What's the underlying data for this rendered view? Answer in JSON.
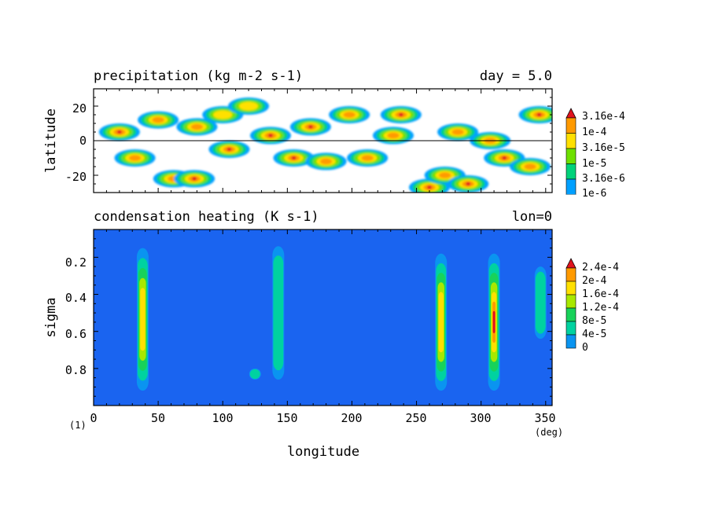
{
  "chart_data": [
    {
      "type": "heatmap",
      "title": "precipitation (kg m-2 s-1)",
      "title_right": "day = 5.0",
      "xlabel": "",
      "ylabel": "latitude",
      "xlim": [
        0,
        355
      ],
      "ylim": [
        -30,
        30
      ],
      "yticks": [
        "20",
        "0",
        "-20"
      ],
      "colorbar": {
        "labels": [
          "3.16e-4",
          "1e-4",
          "3.16e-5",
          "1e-5",
          "3.16e-6",
          "1e-6"
        ],
        "colors": [
          "#ff9a00",
          "#ffe000",
          "#6ee000",
          "#00d27a",
          "#00a0ff",
          "#ffffff"
        ],
        "peak_color": "#e0141e"
      },
      "features": [
        {
          "lon": 20,
          "lat": 5,
          "level": 4
        },
        {
          "lon": 32,
          "lat": -10,
          "level": 3
        },
        {
          "lon": 50,
          "lat": 12,
          "level": 3
        },
        {
          "lon": 62,
          "lat": -22,
          "level": 3
        },
        {
          "lon": 78,
          "lat": -22,
          "level": 4
        },
        {
          "lon": 80,
          "lat": 8,
          "level": 3
        },
        {
          "lon": 100,
          "lat": 15,
          "level": 2
        },
        {
          "lon": 105,
          "lat": -5,
          "level": 4
        },
        {
          "lon": 120,
          "lat": 20,
          "level": 2
        },
        {
          "lon": 137,
          "lat": 3,
          "level": 4
        },
        {
          "lon": 155,
          "lat": -10,
          "level": 4
        },
        {
          "lon": 168,
          "lat": 8,
          "level": 4
        },
        {
          "lon": 180,
          "lat": -12,
          "level": 3
        },
        {
          "lon": 198,
          "lat": 15,
          "level": 3
        },
        {
          "lon": 212,
          "lat": -10,
          "level": 3
        },
        {
          "lon": 232,
          "lat": 3,
          "level": 3
        },
        {
          "lon": 238,
          "lat": 15,
          "level": 4
        },
        {
          "lon": 260,
          "lat": -27,
          "level": 4
        },
        {
          "lon": 272,
          "lat": -20,
          "level": 3
        },
        {
          "lon": 282,
          "lat": 5,
          "level": 3
        },
        {
          "lon": 290,
          "lat": -25,
          "level": 4
        },
        {
          "lon": 307,
          "lat": 0,
          "level": 3
        },
        {
          "lon": 318,
          "lat": -10,
          "level": 4
        },
        {
          "lon": 338,
          "lat": -15,
          "level": 3
        },
        {
          "lon": 345,
          "lat": 15,
          "level": 4
        }
      ]
    },
    {
      "type": "heatmap",
      "title": "condensation heating (K s-1)",
      "title_right": "lon=0",
      "xlabel": "longitude",
      "ylabel": "sigma",
      "xlim": [
        0,
        355
      ],
      "ylim": [
        1.0,
        0.05
      ],
      "xticks": [
        "0",
        "50",
        "100",
        "150",
        "200",
        "250",
        "300",
        "350"
      ],
      "yticks": [
        "0.2",
        "0.4",
        "0.6",
        "0.8"
      ],
      "x_unit": "(deg)",
      "figure_label": "(1)",
      "colorbar": {
        "labels": [
          "2.4e-4",
          "2e-4",
          "1.6e-4",
          "1.2e-4",
          "8e-5",
          "4e-5",
          "0"
        ],
        "colors": [
          "#ff9a00",
          "#ffe000",
          "#a8e800",
          "#18d25a",
          "#00d2a0",
          "#0a94f0",
          "#1a64f0"
        ],
        "peak_color": "#e0141e"
      },
      "features": [
        {
          "lon": 38,
          "sigma_top": 0.15,
          "sigma_bottom": 0.92,
          "level": 4
        },
        {
          "lon": 125,
          "sigma_top": 0.8,
          "sigma_bottom": 0.86,
          "level": 1
        },
        {
          "lon": 143,
          "sigma_top": 0.14,
          "sigma_bottom": 0.86,
          "level": 1
        },
        {
          "lon": 269,
          "sigma_top": 0.18,
          "sigma_bottom": 0.92,
          "level": 4
        },
        {
          "lon": 310,
          "sigma_top": 0.18,
          "sigma_bottom": 0.92,
          "level": 6
        },
        {
          "lon": 346,
          "sigma_top": 0.25,
          "sigma_bottom": 0.64,
          "level": 1
        }
      ]
    }
  ]
}
